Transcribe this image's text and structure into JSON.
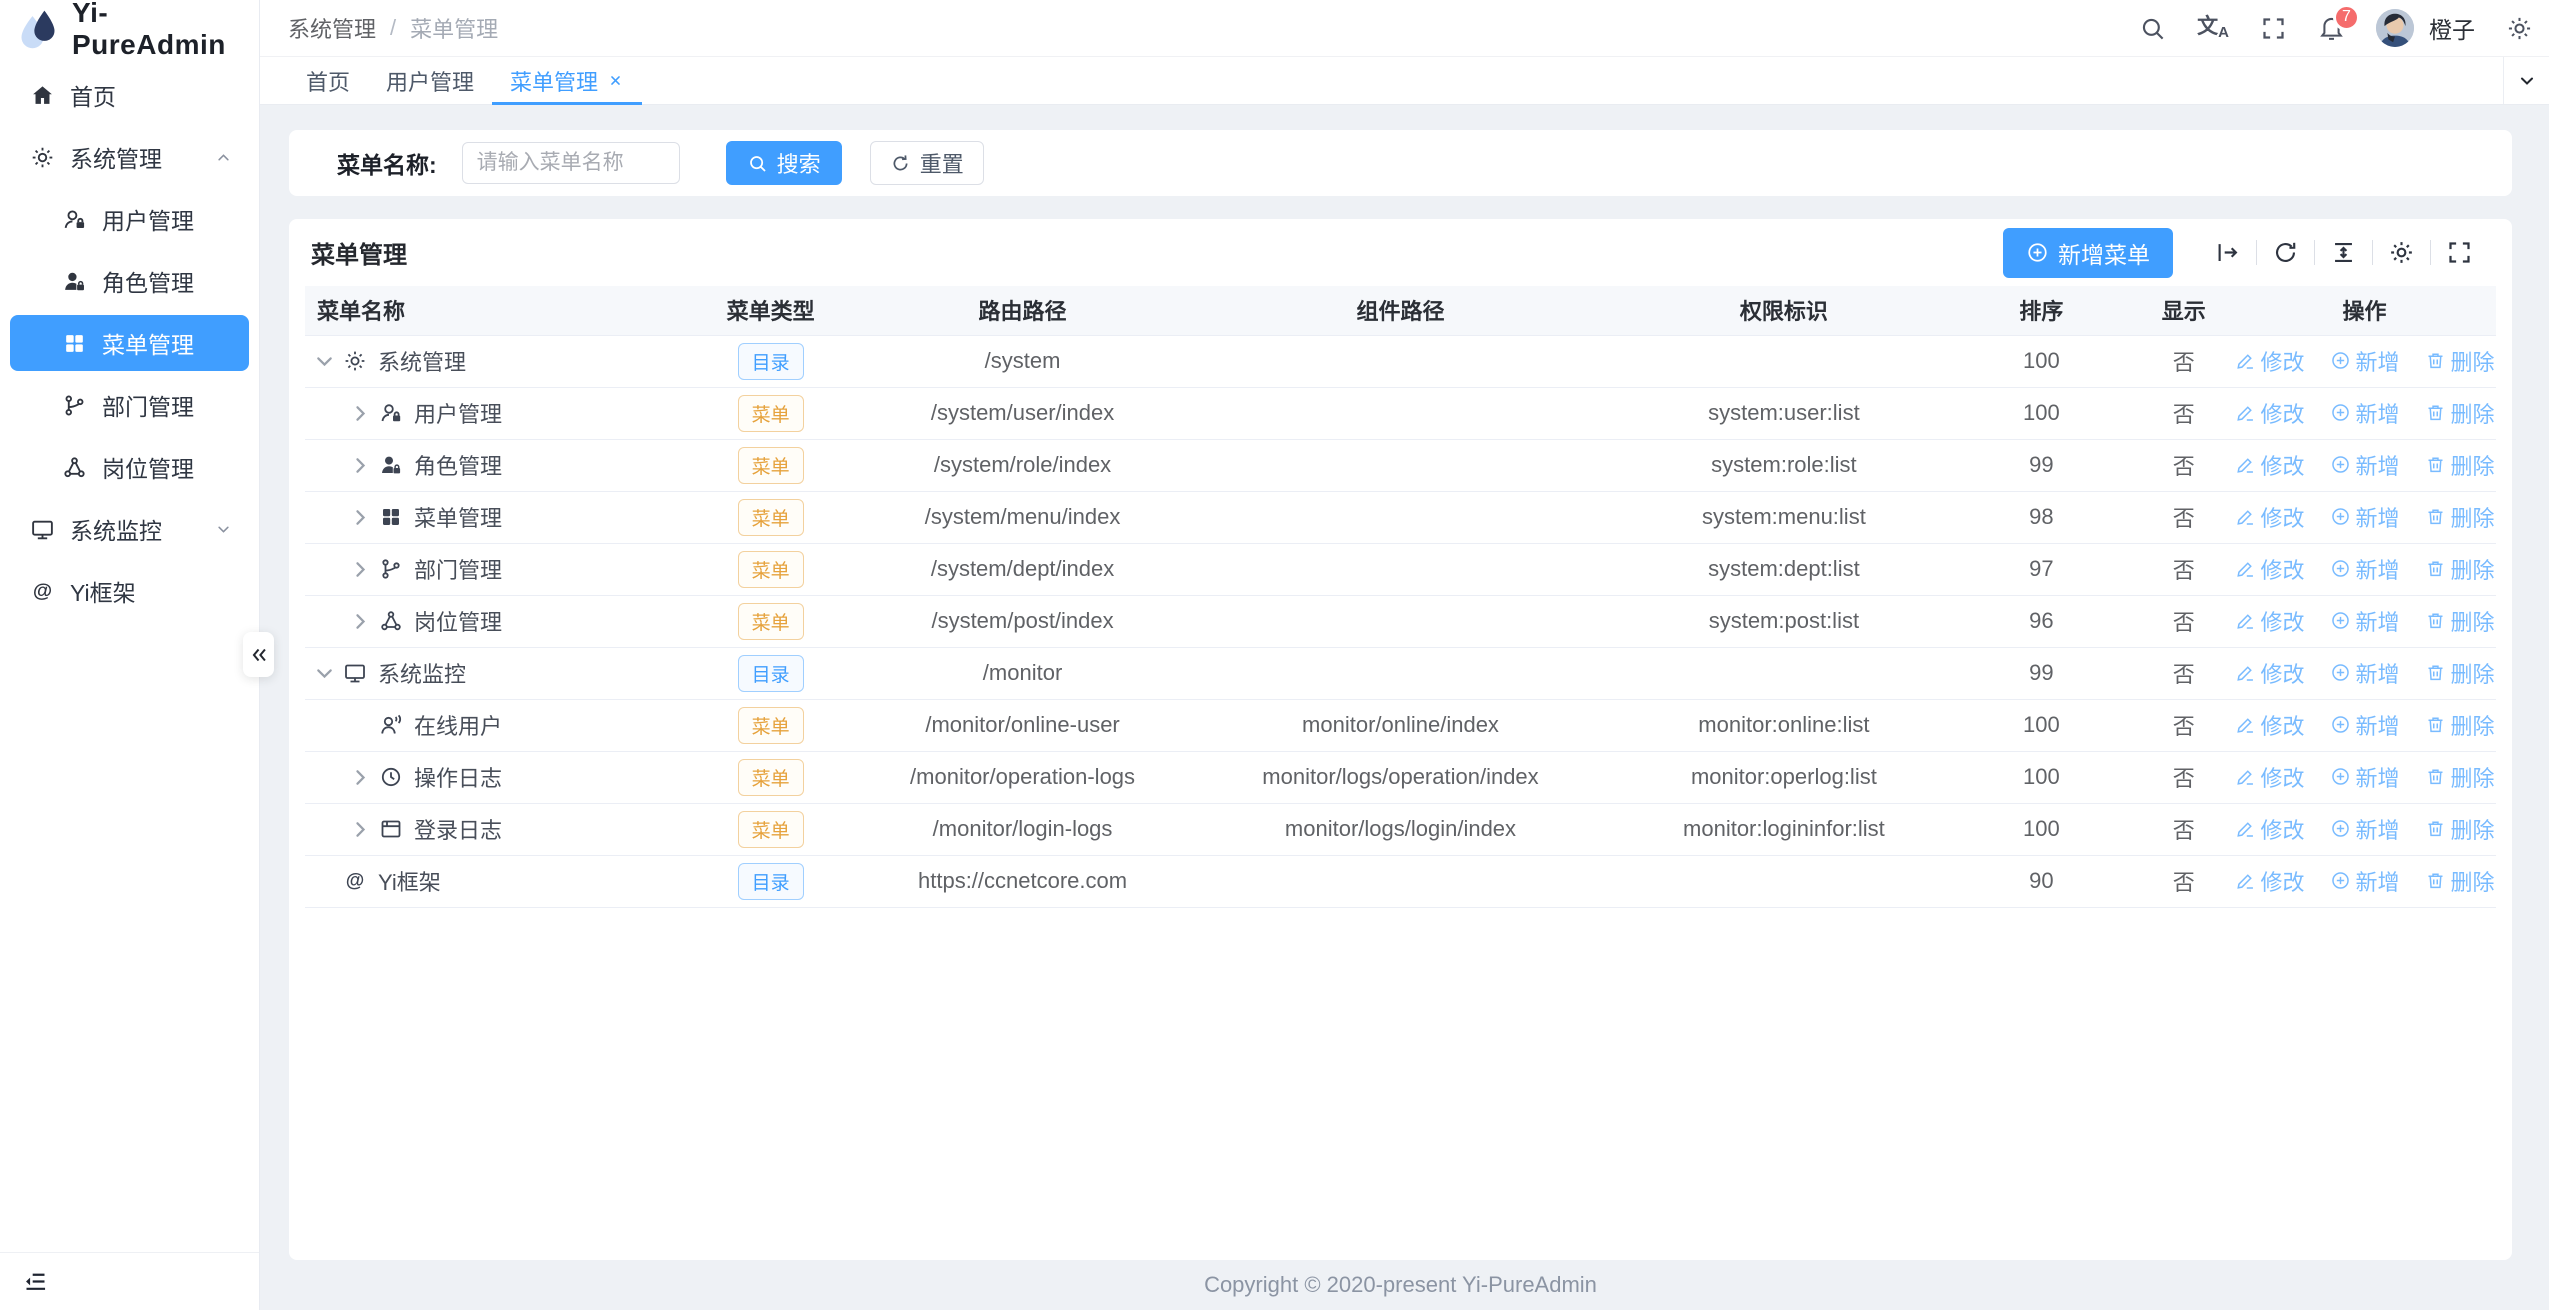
{
  "colors": {
    "primary": "#409eff",
    "tag_dir": "#409eff",
    "tag_menu": "#e6a23c",
    "badge": "#f56c6c",
    "action_link": "#79bbff"
  },
  "sidebar": {
    "logo_title": "Yi-PureAdmin",
    "items": [
      {
        "key": "home",
        "label": "首页",
        "icon": "home"
      },
      {
        "key": "system-management",
        "label": "系统管理",
        "icon": "gear",
        "expanded": true,
        "children": [
          {
            "key": "user-management",
            "label": "用户管理",
            "icon": "user"
          },
          {
            "key": "role-management",
            "label": "角色管理",
            "icon": "user-filled"
          },
          {
            "key": "menu-management",
            "label": "菜单管理",
            "icon": "grid",
            "active": true
          },
          {
            "key": "dept-management",
            "label": "部门管理",
            "icon": "branch"
          },
          {
            "key": "post-management",
            "label": "岗位管理",
            "icon": "nodes"
          }
        ]
      },
      {
        "key": "system-monitor",
        "label": "系统监控",
        "icon": "monitor",
        "expanded": false
      },
      {
        "key": "yi-framework",
        "label": "Yi框架",
        "icon": "at"
      }
    ]
  },
  "topbar": {
    "breadcrumb": [
      "系统管理",
      "菜单管理"
    ],
    "separator": "/",
    "badge_count": "7",
    "user_name": "橙子"
  },
  "tabs": {
    "items": [
      {
        "key": "home",
        "label": "首页"
      },
      {
        "key": "user-management",
        "label": "用户管理"
      },
      {
        "key": "menu-management",
        "label": "菜单管理",
        "active": true,
        "closable": true
      }
    ]
  },
  "search": {
    "label": "菜单名称:",
    "placeholder": "请输入菜单名称",
    "value": "",
    "search_btn": "搜索",
    "reset_btn": "重置"
  },
  "card": {
    "title": "菜单管理",
    "add_btn": "新增菜单"
  },
  "table": {
    "headers": [
      "菜单名称",
      "菜单类型",
      "路由路径",
      "组件路径",
      "权限标识",
      "排序",
      "显示",
      "操作"
    ],
    "ops": [
      {
        "key": "edit",
        "label": "修改",
        "icon": "pencil"
      },
      {
        "key": "add",
        "label": "新增",
        "icon": "plus-circle"
      },
      {
        "key": "delete",
        "label": "删除",
        "icon": "trash"
      }
    ],
    "rows": [
      {
        "indent": 0,
        "arrow": "down",
        "icon": "gear",
        "name": "系统管理",
        "type_label": "目录",
        "type_kind": "dir",
        "route": "/system",
        "component": "",
        "perm": "",
        "sort": "100",
        "show": "否"
      },
      {
        "indent": 1,
        "arrow": "right",
        "icon": "user",
        "name": "用户管理",
        "type_label": "菜单",
        "type_kind": "menu",
        "route": "/system/user/index",
        "component": "",
        "perm": "system:user:list",
        "sort": "100",
        "show": "否"
      },
      {
        "indent": 1,
        "arrow": "right",
        "icon": "user-filled",
        "name": "角色管理",
        "type_label": "菜单",
        "type_kind": "menu",
        "route": "/system/role/index",
        "component": "",
        "perm": "system:role:list",
        "sort": "99",
        "show": "否"
      },
      {
        "indent": 1,
        "arrow": "right",
        "icon": "grid",
        "name": "菜单管理",
        "type_label": "菜单",
        "type_kind": "menu",
        "route": "/system/menu/index",
        "component": "",
        "perm": "system:menu:list",
        "sort": "98",
        "show": "否"
      },
      {
        "indent": 1,
        "arrow": "right",
        "icon": "branch",
        "name": "部门管理",
        "type_label": "菜单",
        "type_kind": "menu",
        "route": "/system/dept/index",
        "component": "",
        "perm": "system:dept:list",
        "sort": "97",
        "show": "否"
      },
      {
        "indent": 1,
        "arrow": "right",
        "icon": "nodes",
        "name": "岗位管理",
        "type_label": "菜单",
        "type_kind": "menu",
        "route": "/system/post/index",
        "component": "",
        "perm": "system:post:list",
        "sort": "96",
        "show": "否"
      },
      {
        "indent": 0,
        "arrow": "down",
        "icon": "monitor",
        "name": "系统监控",
        "type_label": "目录",
        "type_kind": "dir",
        "route": "/monitor",
        "component": "",
        "perm": "",
        "sort": "99",
        "show": "否"
      },
      {
        "indent": 1,
        "arrow": "none",
        "icon": "online-user",
        "name": "在线用户",
        "type_label": "菜单",
        "type_kind": "menu",
        "route": "/monitor/online-user",
        "component": "monitor/online/index",
        "perm": "monitor:online:list",
        "sort": "100",
        "show": "否"
      },
      {
        "indent": 1,
        "arrow": "right",
        "icon": "clock",
        "name": "操作日志",
        "type_label": "菜单",
        "type_kind": "menu",
        "route": "/monitor/operation-logs",
        "component": "monitor/logs/operation/index",
        "perm": "monitor:operlog:list",
        "sort": "100",
        "show": "否"
      },
      {
        "indent": 1,
        "arrow": "right",
        "icon": "window",
        "name": "登录日志",
        "type_label": "菜单",
        "type_kind": "menu",
        "route": "/monitor/login-logs",
        "component": "monitor/logs/login/index",
        "perm": "monitor:logininfor:list",
        "sort": "100",
        "show": "否"
      },
      {
        "indent": 0,
        "arrow": "none",
        "icon": "at",
        "name": "Yi框架",
        "type_label": "目录",
        "type_kind": "dir",
        "route": "https://ccnetcore.com",
        "component": "",
        "perm": "",
        "sort": "90",
        "show": "否"
      }
    ]
  },
  "footer": {
    "copyright": "Copyright © 2020-present Yi-PureAdmin"
  }
}
